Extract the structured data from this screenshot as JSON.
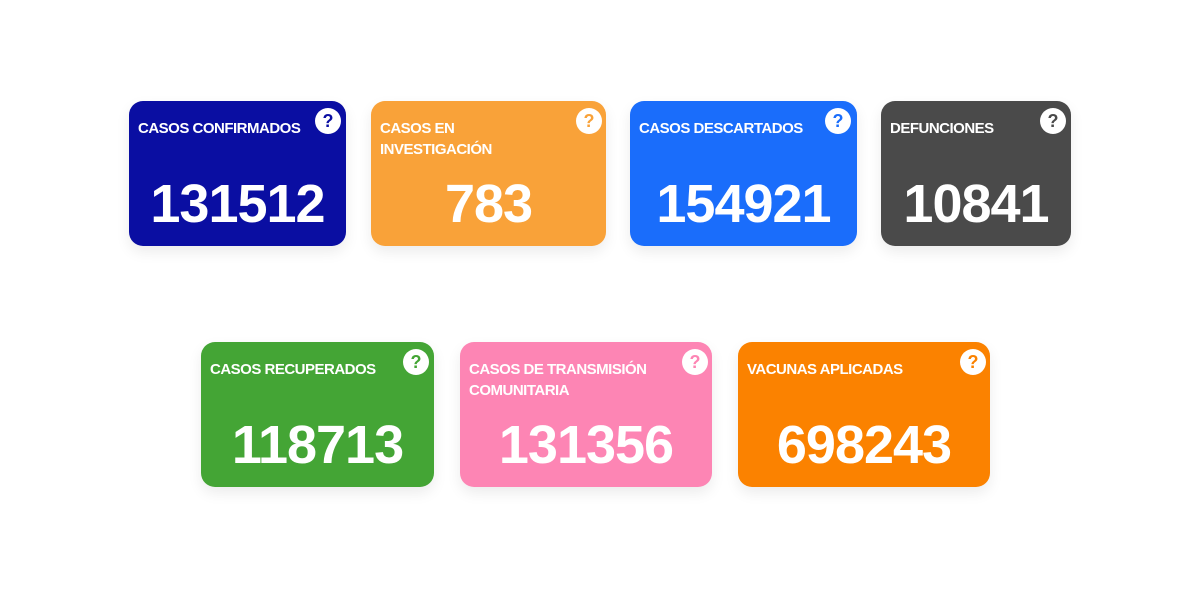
{
  "cards": [
    {
      "title": "CASOS CONFIRMADOS",
      "value": "131512",
      "help": "?",
      "color": "#0a0ea2"
    },
    {
      "title": "CASOS EN INVESTIGACIÓN",
      "value": "783",
      "help": "?",
      "color": "#f9a239"
    },
    {
      "title": "CASOS DESCARTADOS",
      "value": "154921",
      "help": "?",
      "color": "#1a6dfb"
    },
    {
      "title": "DEFUNCIONES",
      "value": "10841",
      "help": "?",
      "color": "#4a4a4a"
    },
    {
      "title": "CASOS RECUPERADOS",
      "value": "118713",
      "help": "?",
      "color": "#44a535"
    },
    {
      "title": "CASOS DE TRANSMISIÓN COMUNITARIA",
      "value": "131356",
      "help": "?",
      "color": "#fd85b4"
    },
    {
      "title": "VACUNAS APLICADAS",
      "value": "698243",
      "help": "?",
      "color": "#fb8200"
    }
  ]
}
